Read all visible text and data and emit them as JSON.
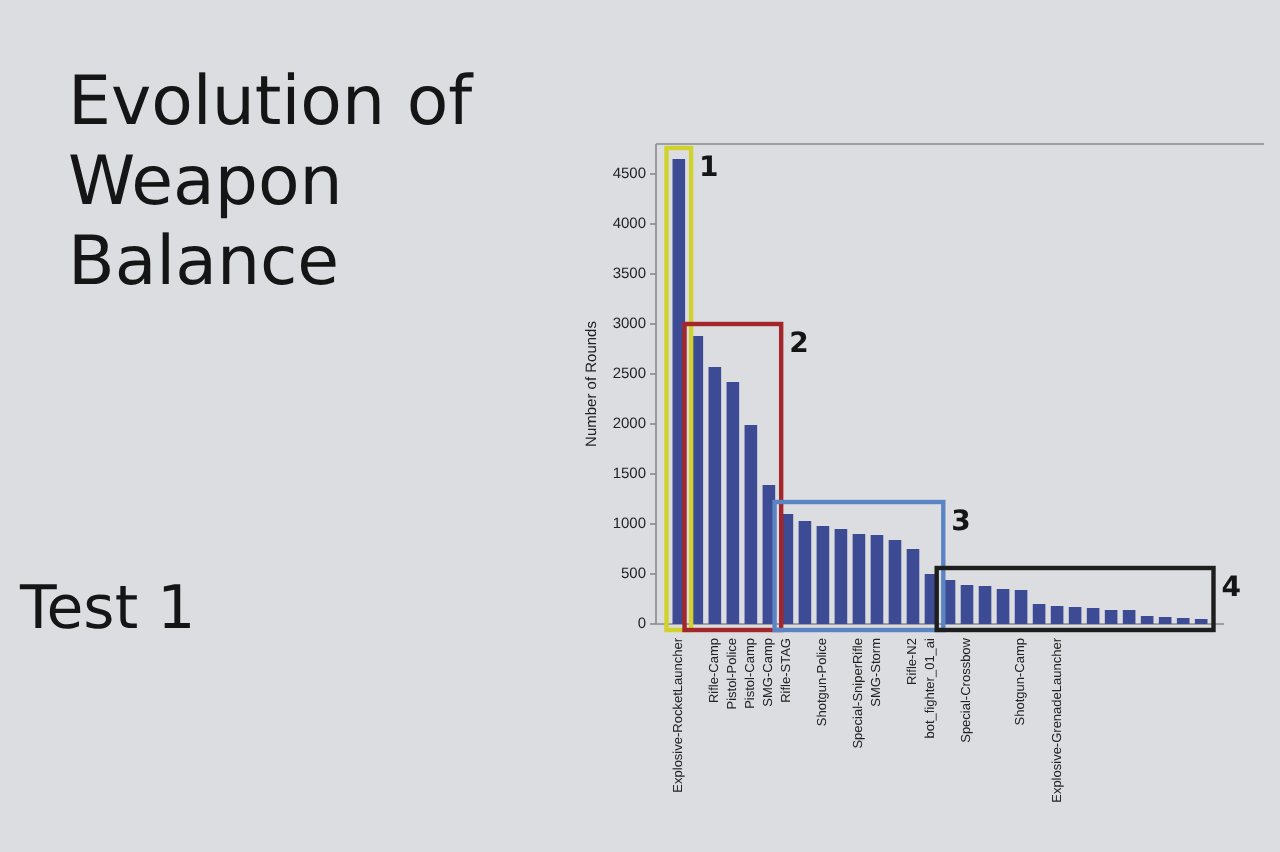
{
  "chart_data": {
    "type": "bar",
    "title": "Evolution of Weapon Balance",
    "subtitle": "Test 1",
    "ylabel": "Number of Rounds",
    "categories": [
      "Explosive-RocketLauncher",
      null,
      "Rifle-Camp",
      "Pistol-Police",
      "Pistol-Camp",
      "SMG-Camp",
      "Rifle-STAG",
      null,
      "Shotgun-Police",
      null,
      "Special-SniperRifle",
      "SMG-Storm",
      null,
      "Rifle-N2",
      "bot_fighter_01_ai",
      null,
      "Special-Crossbow",
      null,
      null,
      "Shotgun-Camp",
      null,
      "Explosive-GrenadeLauncher",
      null,
      null,
      null,
      null,
      null,
      null,
      null,
      null
    ],
    "values": [
      4650,
      2880,
      2570,
      2420,
      1990,
      1390,
      1100,
      1030,
      980,
      950,
      900,
      890,
      840,
      750,
      500,
      440,
      390,
      380,
      350,
      340,
      200,
      180,
      170,
      160,
      140,
      140,
      80,
      70,
      60,
      50
    ],
    "color": "#3d4a94",
    "ylim": [
      0,
      4800
    ],
    "yticks": [
      0,
      500,
      1000,
      1500,
      2000,
      2500,
      3000,
      3500,
      4000,
      4500
    ],
    "annotations": [
      "1",
      "2",
      "3",
      "4"
    ]
  }
}
